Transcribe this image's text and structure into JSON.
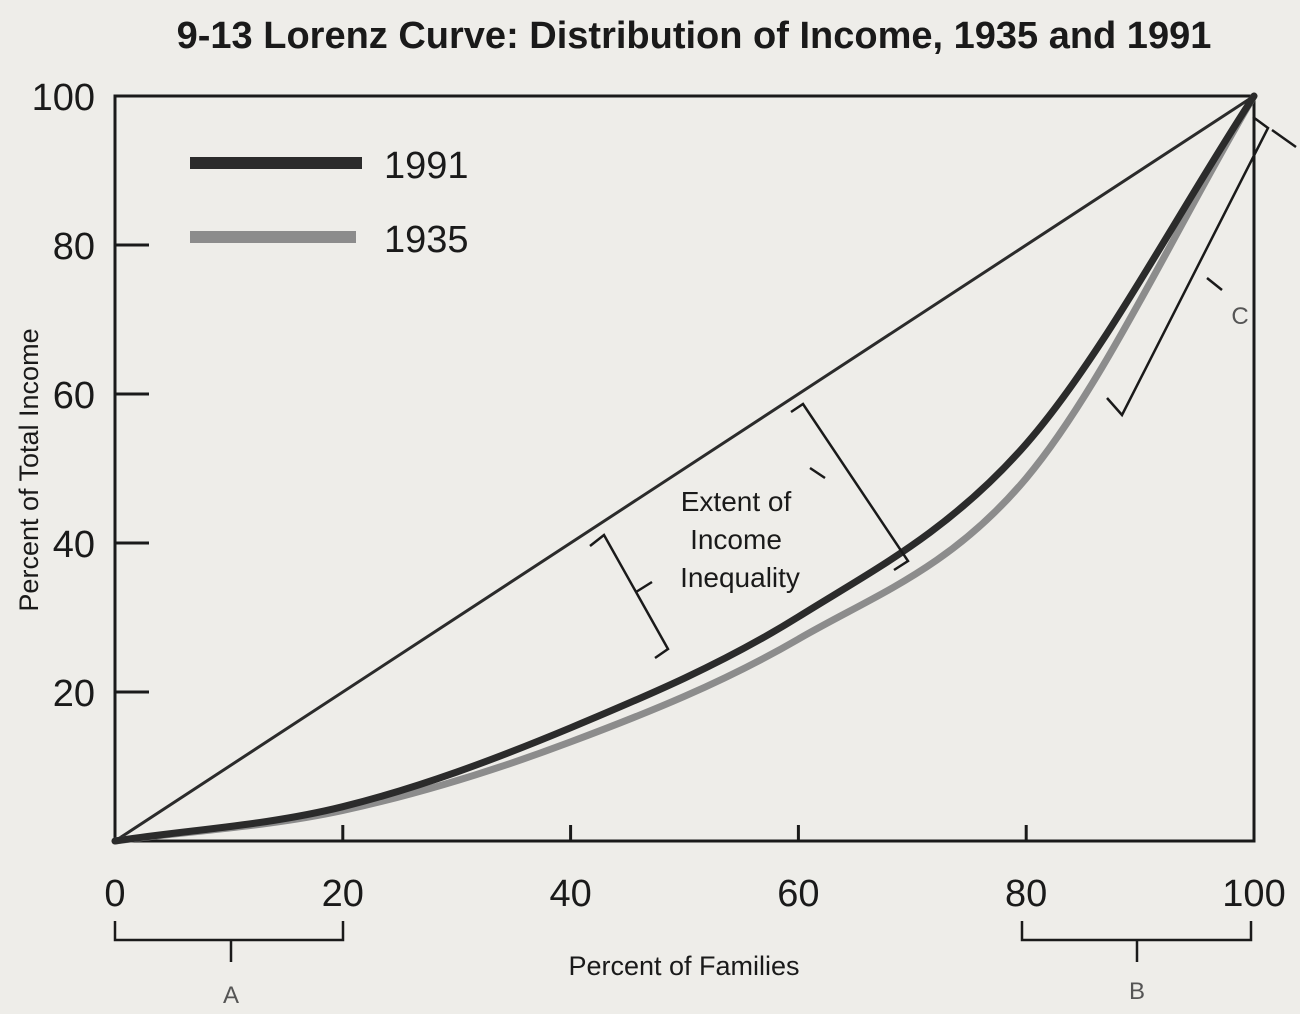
{
  "chart_data": {
    "type": "line",
    "title": "9-13 Lorenz Curve: Distribution of Income, 1935 and 1991",
    "xlabel": "Percent of Families",
    "ylabel": "Percent of Total Income",
    "xlim": [
      0,
      100
    ],
    "ylim": [
      0,
      100
    ],
    "x_ticks": [
      "0",
      "20",
      "40",
      "60",
      "80",
      "100"
    ],
    "y_ticks": [
      "20",
      "40",
      "60",
      "80",
      "100"
    ],
    "legend_position": "top-left",
    "series": [
      {
        "name": "1991",
        "color": "#2b2b2b",
        "x": [
          0,
          20,
          40,
          60,
          80,
          100
        ],
        "y": [
          0,
          4.6,
          15.2,
          30.1,
          53.3,
          100
        ]
      },
      {
        "name": "1935",
        "color": "#8c8c8c",
        "x": [
          0,
          20,
          40,
          60,
          80,
          100
        ],
        "y": [
          0,
          4.1,
          13.3,
          27.1,
          48.7,
          100
        ]
      },
      {
        "name": "",
        "color": "#2b2b2b",
        "x": [
          0,
          100
        ],
        "y": [
          0,
          100
        ]
      }
    ],
    "annotations": {
      "inequality": [
        "Extent of",
        "Income",
        "Inequality"
      ],
      "letters": [
        "A",
        "B",
        "C"
      ]
    }
  }
}
